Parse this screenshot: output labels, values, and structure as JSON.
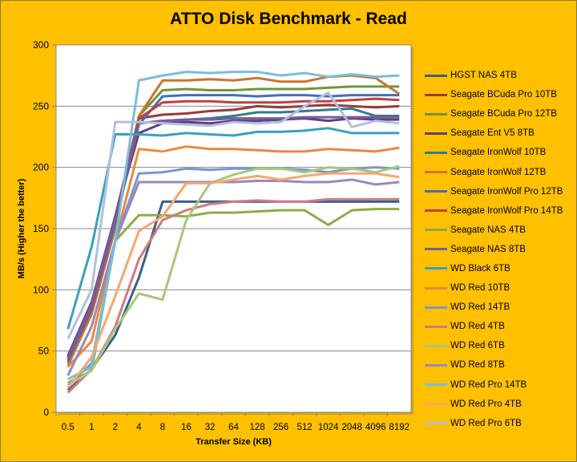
{
  "chart_data": {
    "type": "line",
    "title": "ATTO Disk Benchmark - Read",
    "xlabel": "Transfer Size (KB)",
    "ylabel": "MB/s (Higher the better)",
    "ylim": [
      0,
      300
    ],
    "yticks": [
      "0",
      "50",
      "100",
      "150",
      "200",
      "250",
      "300"
    ],
    "grid": true,
    "legend_position": "right",
    "categories": [
      "0.5",
      "1",
      "2",
      "4",
      "8",
      "16",
      "32",
      "64",
      "128",
      "256",
      "512",
      "1024",
      "2048",
      "4096",
      "8192"
    ],
    "series": [
      {
        "name": "HGST NAS 4TB",
        "color": "#3b5f8e",
        "values": [
          18,
          35,
          63,
          110,
          172,
          172,
          172,
          172,
          172,
          172,
          172,
          172,
          172,
          172,
          172
        ]
      },
      {
        "name": "Seagate BCuda Pro 10TB",
        "color": "#983a3a",
        "values": [
          45,
          88,
          160,
          240,
          243,
          244,
          246,
          247,
          250,
          249,
          250,
          251,
          250,
          249,
          250
        ]
      },
      {
        "name": "Seagate BCuda Pro 12TB",
        "color": "#76943a",
        "values": [
          42,
          85,
          158,
          242,
          263,
          264,
          263,
          263,
          264,
          264,
          264,
          265,
          266,
          266,
          266
        ]
      },
      {
        "name": "Seagate Ent V5 8TB",
        "color": "#5c4080",
        "values": [
          46,
          90,
          160,
          228,
          236,
          237,
          236,
          238,
          238,
          239,
          240,
          238,
          240,
          239,
          239
        ]
      },
      {
        "name": "Seagate IronWolf 10TB",
        "color": "#2e7e90",
        "values": [
          40,
          82,
          155,
          236,
          238,
          239,
          240,
          242,
          245,
          245,
          246,
          247,
          248,
          242,
          242
        ]
      },
      {
        "name": "Seagate IronWolf 12TB",
        "color": "#c87530",
        "values": [
          38,
          80,
          150,
          242,
          271,
          271,
          272,
          271,
          273,
          270,
          270,
          274,
          275,
          273,
          260
        ]
      },
      {
        "name": "Seagate IronWolf Pro 12TB",
        "color": "#4070b8",
        "values": [
          42,
          84,
          155,
          235,
          258,
          259,
          259,
          259,
          258,
          259,
          259,
          258,
          259,
          259,
          259
        ]
      },
      {
        "name": "Seagate IronWolf Pro 14TB",
        "color": "#c04040",
        "values": [
          44,
          86,
          158,
          240,
          253,
          254,
          254,
          253,
          253,
          253,
          254,
          254,
          255,
          256,
          255
        ]
      },
      {
        "name": "Seagate NAS 4TB",
        "color": "#8aae48",
        "values": [
          24,
          34,
          140,
          161,
          161,
          160,
          163,
          163,
          164,
          165,
          165,
          153,
          165,
          166,
          166
        ]
      },
      {
        "name": "Seagate NAS 8TB",
        "color": "#7a5c9c",
        "values": [
          44,
          88,
          158,
          236,
          238,
          239,
          239,
          240,
          240,
          240,
          241,
          241,
          241,
          241,
          241
        ]
      },
      {
        "name": "WD Black 6TB",
        "color": "#38a0bf",
        "values": [
          68,
          135,
          227,
          227,
          226,
          228,
          227,
          226,
          229,
          229,
          230,
          232,
          228,
          228,
          228
        ]
      },
      {
        "name": "WD Red 10TB",
        "color": "#ee8838",
        "values": [
          37,
          58,
          140,
          215,
          213,
          217,
          215,
          215,
          214,
          213,
          213,
          215,
          214,
          213,
          216
        ]
      },
      {
        "name": "WD Red 14TB",
        "color": "#7898cc",
        "values": [
          22,
          40,
          140,
          195,
          196,
          199,
          198,
          199,
          199,
          199,
          198,
          196,
          199,
          200,
          199
        ]
      },
      {
        "name": "WD Red 4TB",
        "color": "#d07c7c",
        "values": [
          16,
          35,
          70,
          125,
          157,
          165,
          170,
          172,
          173,
          172,
          172,
          174,
          174,
          174,
          174
        ]
      },
      {
        "name": "WD Red 6TB",
        "color": "#a6c87a",
        "values": [
          22,
          34,
          68,
          97,
          92,
          157,
          187,
          194,
          199,
          199,
          196,
          200,
          199,
          196,
          201
        ]
      },
      {
        "name": "WD Red 8TB",
        "color": "#9888bc",
        "values": [
          30,
          70,
          140,
          188,
          188,
          188,
          188,
          188,
          189,
          189,
          188,
          188,
          190,
          186,
          188
        ]
      },
      {
        "name": "WD Red Pro 14TB",
        "color": "#78bedc",
        "values": [
          27,
          37,
          140,
          271,
          275,
          278,
          277,
          278,
          278,
          275,
          277,
          274,
          276,
          274,
          275
        ]
      },
      {
        "name": "WD Red Pro 4TB",
        "color": "#f8a670",
        "values": [
          20,
          45,
          95,
          148,
          160,
          187,
          187,
          190,
          193,
          190,
          193,
          195,
          195,
          195,
          192
        ]
      },
      {
        "name": "WD Red Pro 6TB",
        "color": "#b2c0de",
        "values": [
          60,
          100,
          237,
          237,
          236,
          235,
          234,
          237,
          236,
          237,
          250,
          261,
          233,
          238,
          236
        ]
      }
    ]
  }
}
